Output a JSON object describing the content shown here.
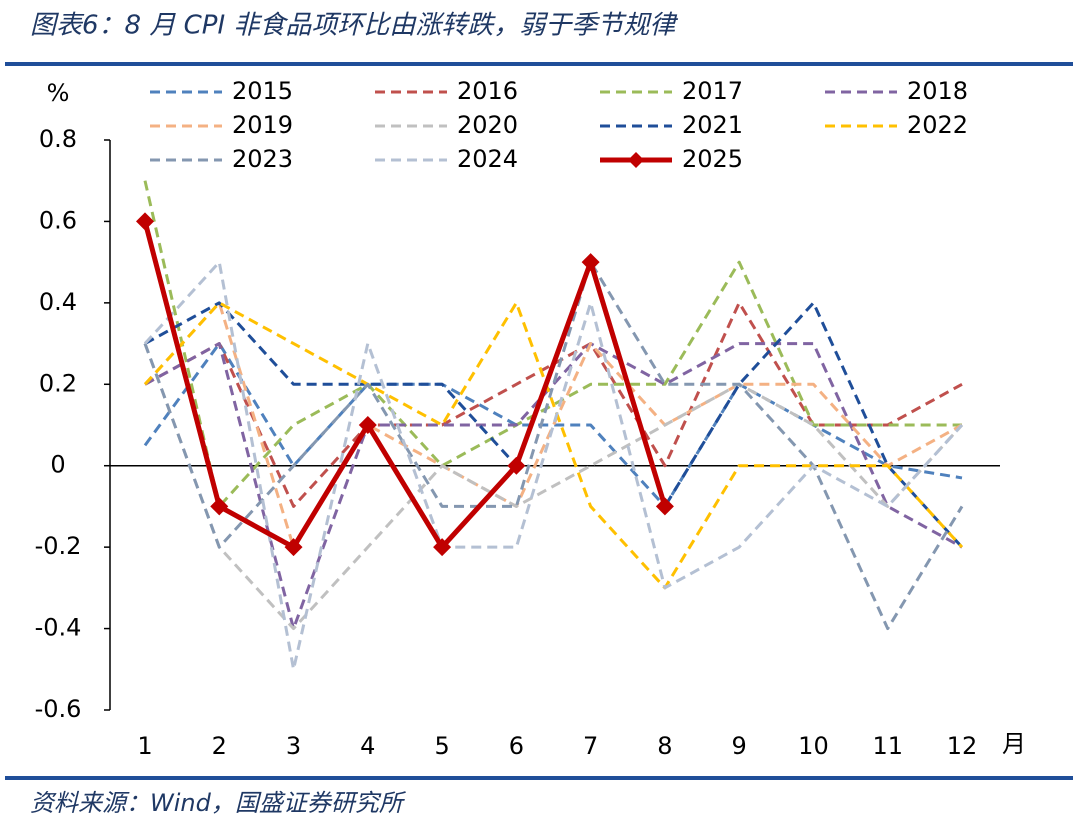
{
  "chart_data": {
    "type": "line",
    "title": "图表6：8 月 CPI 非食品项环比由涨转跌，弱于季节规律",
    "source": "资料来源：Wind，国盛证券研究所",
    "y_label": "%",
    "x_label": "月",
    "categories": [
      "1",
      "2",
      "3",
      "4",
      "5",
      "6",
      "7",
      "8",
      "9",
      "10",
      "11",
      "12"
    ],
    "ylim": [
      -0.6,
      0.8
    ],
    "yticks": [
      -0.6,
      -0.4,
      -0.2,
      0,
      0.2,
      0.4,
      0.6,
      0.8
    ],
    "legend": "top",
    "series": [
      {
        "name": "2015",
        "color": "#4f81bd",
        "dash": true,
        "values": [
          0.05,
          0.3,
          0.0,
          0.2,
          0.2,
          0.1,
          0.1,
          -0.1,
          0.2,
          0.1,
          0.0,
          -0.03
        ]
      },
      {
        "name": "2016",
        "color": "#c0504d",
        "dash": true,
        "values": [
          0.2,
          0.3,
          -0.1,
          0.1,
          0.1,
          0.2,
          0.3,
          0.0,
          0.4,
          0.1,
          0.1,
          0.2
        ]
      },
      {
        "name": "2017",
        "color": "#9bbb59",
        "dash": true,
        "values": [
          0.7,
          -0.1,
          0.1,
          0.2,
          0.0,
          0.1,
          0.2,
          0.2,
          0.5,
          0.1,
          0.1,
          0.1
        ]
      },
      {
        "name": "2018",
        "color": "#8064a2",
        "dash": true,
        "values": [
          0.2,
          0.3,
          -0.4,
          0.1,
          0.1,
          0.1,
          0.3,
          0.2,
          0.3,
          0.3,
          -0.1,
          -0.2
        ]
      },
      {
        "name": "2019",
        "color": "#f4b183",
        "dash": true,
        "values": [
          0.2,
          0.4,
          -0.2,
          0.1,
          0.0,
          -0.1,
          0.3,
          0.1,
          0.2,
          0.2,
          0.0,
          0.1
        ]
      },
      {
        "name": "2020",
        "color": "#c0c0c0",
        "dash": true,
        "values": [
          0.3,
          -0.2,
          -0.4,
          -0.2,
          0.0,
          -0.1,
          0.0,
          0.1,
          0.2,
          0.1,
          -0.1,
          0.1
        ]
      },
      {
        "name": "2021",
        "color": "#1f4e99",
        "dash": true,
        "values": [
          0.3,
          0.4,
          0.2,
          0.2,
          0.2,
          0.0,
          0.5,
          -0.1,
          0.2,
          0.4,
          0.0,
          -0.2
        ]
      },
      {
        "name": "2022",
        "color": "#ffc000",
        "dash": true,
        "values": [
          0.2,
          0.4,
          0.3,
          0.2,
          0.1,
          0.4,
          -0.1,
          -0.3,
          0.0,
          0.0,
          0.0,
          -0.2
        ]
      },
      {
        "name": "2023",
        "color": "#8497b0",
        "dash": true,
        "values": [
          0.3,
          -0.2,
          0.0,
          0.2,
          -0.1,
          -0.1,
          0.5,
          0.2,
          0.2,
          0.0,
          -0.4,
          -0.1
        ]
      },
      {
        "name": "2024",
        "color": "#b4c0d3",
        "dash": true,
        "values": [
          0.3,
          0.5,
          -0.5,
          0.3,
          -0.2,
          -0.2,
          0.4,
          -0.3,
          -0.2,
          0.0,
          -0.1,
          0.1
        ]
      },
      {
        "name": "2025",
        "color": "#c00000",
        "dash": false,
        "marker": "diamond",
        "values": [
          0.6,
          -0.1,
          -0.2,
          0.1,
          -0.2,
          0.0,
          0.5,
          -0.1,
          null,
          null,
          null,
          null
        ]
      }
    ]
  }
}
